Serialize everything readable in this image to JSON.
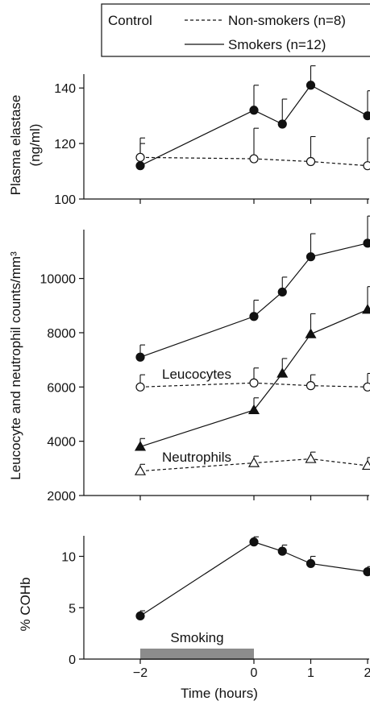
{
  "legend": {
    "group": "Control",
    "nonsmokers": "Non-smokers (n=8)",
    "smokers": "Smokers (n=12)"
  },
  "x_axis": {
    "label": "Time (hours)",
    "ticks": [
      -2,
      0,
      1,
      2
    ],
    "tick_labels": [
      "−2",
      "0",
      "1",
      "2"
    ]
  },
  "smoking_label": "Smoking",
  "colors": {
    "ink": "#111111",
    "smoking_bar": "#8c8c8c"
  },
  "chart_data": [
    {
      "type": "line",
      "ylabel_lines": [
        "Plasma elastase",
        "(ng/ml)"
      ],
      "ylim": [
        100,
        145
      ],
      "yticks": [
        100,
        120,
        140
      ],
      "x": [
        -2,
        0,
        0.5,
        1,
        2
      ],
      "series": [
        {
          "name": "Smokers (n=12)",
          "style": "solid",
          "marker": "filled-circle",
          "x": [
            -2,
            0,
            0.5,
            1,
            2
          ],
          "values": [
            112,
            132,
            127,
            141,
            130
          ],
          "err": [
            8,
            9,
            9,
            7,
            9
          ]
        },
        {
          "name": "Non-smokers (n=8)",
          "style": "dashed",
          "marker": "open-circle",
          "x": [
            -2,
            0,
            1,
            2
          ],
          "values": [
            115,
            114.5,
            113.5,
            112
          ],
          "err": [
            7,
            11,
            9,
            10
          ]
        }
      ]
    },
    {
      "type": "line",
      "ylabel_lines": [
        "Leucocyte and neutrophil counts/mm³"
      ],
      "ylim": [
        2000,
        11800
      ],
      "yticks": [
        2000,
        4000,
        6000,
        8000,
        10000
      ],
      "annotations": [
        "Leucocytes",
        "Neutrophils"
      ],
      "series": [
        {
          "name": "Leucocytes (smokers)",
          "style": "solid",
          "marker": "filled-circle",
          "x": [
            -2,
            0,
            0.5,
            1,
            2
          ],
          "values": [
            7100,
            8600,
            9500,
            10800,
            11300
          ],
          "err": [
            450,
            600,
            550,
            850,
            1000
          ]
        },
        {
          "name": "Neutrophils (smokers)",
          "style": "solid",
          "marker": "filled-triangle",
          "x": [
            -2,
            0,
            0.5,
            1,
            2
          ],
          "values": [
            3800,
            5150,
            6500,
            7950,
            8850
          ],
          "err": [
            300,
            450,
            550,
            750,
            850
          ]
        },
        {
          "name": "Leucocytes (non-smokers)",
          "style": "dashed",
          "marker": "open-circle",
          "x": [
            -2,
            0,
            1,
            2
          ],
          "values": [
            6000,
            6150,
            6050,
            6000
          ],
          "err": [
            450,
            550,
            400,
            500
          ]
        },
        {
          "name": "Neutrophils (non-smokers)",
          "style": "dashed",
          "marker": "open-triangle",
          "x": [
            -2,
            0,
            1,
            2
          ],
          "values": [
            2900,
            3200,
            3350,
            3100
          ],
          "err": [
            250,
            250,
            250,
            300
          ]
        }
      ]
    },
    {
      "type": "line",
      "ylabel_lines": [
        "% COHb"
      ],
      "ylim": [
        0,
        12
      ],
      "yticks": [
        0,
        5,
        10
      ],
      "shaded_interval": {
        "label": "Smoking",
        "x": [
          -2,
          0
        ]
      },
      "series": [
        {
          "name": "Smokers (n=12)",
          "style": "solid",
          "marker": "filled-circle",
          "x": [
            -2,
            0,
            0.5,
            1,
            2
          ],
          "values": [
            4.2,
            11.4,
            10.5,
            9.3,
            8.5
          ],
          "err": [
            0.5,
            0.5,
            0.6,
            0.7,
            0.5
          ]
        }
      ]
    }
  ]
}
